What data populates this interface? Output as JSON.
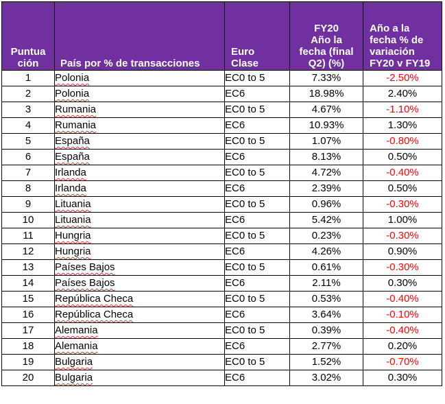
{
  "header": {
    "rank": "Puntuación",
    "rank_lines": [
      "Puntua",
      "ción"
    ],
    "country": "País por % de transacciones",
    "euro_lines": [
      "Euro",
      "Clase"
    ],
    "fy20_lines": [
      "FY20",
      "Año la",
      "fecha (final",
      "Q2)  (%)"
    ],
    "var_lines": [
      "Año a la",
      "fecha % de",
      "variación",
      "FY20 v FY19"
    ]
  },
  "rows": [
    {
      "rank": "1",
      "country": "Polonia",
      "euro": "EC0 to 5",
      "fy20": "7.33%",
      "var": "-2.50%"
    },
    {
      "rank": "2",
      "country": "Polonia",
      "euro": "EC6",
      "fy20": "18.98%",
      "var": "2.40%"
    },
    {
      "rank": "3",
      "country": "Rumania",
      "euro": "EC0 to 5",
      "fy20": "4.67%",
      "var": "-1.10%"
    },
    {
      "rank": "4",
      "country": "Rumania",
      "euro": "EC6",
      "fy20": "10.93%",
      "var": "1.30%"
    },
    {
      "rank": "5",
      "country": "España",
      "euro": "EC0 to 5",
      "fy20": "1.07%",
      "var": "-0.80%"
    },
    {
      "rank": "6",
      "country": "España",
      "euro": "EC6",
      "fy20": "8.13%",
      "var": "0.50%"
    },
    {
      "rank": "7",
      "country": "Irlanda",
      "euro": "EC0 to 5",
      "fy20": "4.72%",
      "var": "-0.40%"
    },
    {
      "rank": "8",
      "country": "Irlanda",
      "euro": "EC6",
      "fy20": "2.39%",
      "var": "0.50%"
    },
    {
      "rank": "9",
      "country": "Lituania",
      "euro": "EC0 to 5",
      "fy20": "0.96%",
      "var": "-0.30%"
    },
    {
      "rank": "10",
      "country": "Lituania",
      "euro": "EC6",
      "fy20": "5.42%",
      "var": "1.00%"
    },
    {
      "rank": "11",
      "country": "Hungria",
      "euro": "EC0 to 5",
      "fy20": "0.23%",
      "var": "-0.30%"
    },
    {
      "rank": "12",
      "country": "Hungria",
      "euro": "EC6",
      "fy20": "4.26%",
      "var": "0.90%"
    },
    {
      "rank": "13",
      "country": "Países Bajos",
      "euro": "EC0 to 5",
      "fy20": "0.61%",
      "var": "-0.30%"
    },
    {
      "rank": "14",
      "country": "Países Bajos",
      "euro": "EC6",
      "fy20": "2.11%",
      "var": "0.30%"
    },
    {
      "rank": "15",
      "country": "República Checa",
      "euro": "EC0 to 5",
      "fy20": "0.53%",
      "var": "-0.40%"
    },
    {
      "rank": "16",
      "country": "República Checa",
      "euro": "EC6",
      "fy20": "3.64%",
      "var": "-0.10%"
    },
    {
      "rank": "17",
      "country": "Alemania",
      "euro": "EC0 to 5",
      "fy20": "0.39%",
      "var": "-0.40%"
    },
    {
      "rank": "18",
      "country": "Alemania",
      "euro": "EC6",
      "fy20": "2.77%",
      "var": "0.20%"
    },
    {
      "rank": "19",
      "country": "Bulgaria",
      "euro": "EC0 to 5",
      "fy20": "1.52%",
      "var": "-0.70%"
    },
    {
      "rank": "20",
      "country": "Bulgaria",
      "euro": "EC6",
      "fy20": "3.02%",
      "var": "0.30%"
    }
  ],
  "colors": {
    "header_bg": "#7030a0",
    "header_text": "#ffffff",
    "negative_text": "#ff0000",
    "spellcheck_underline": "#e03030"
  }
}
